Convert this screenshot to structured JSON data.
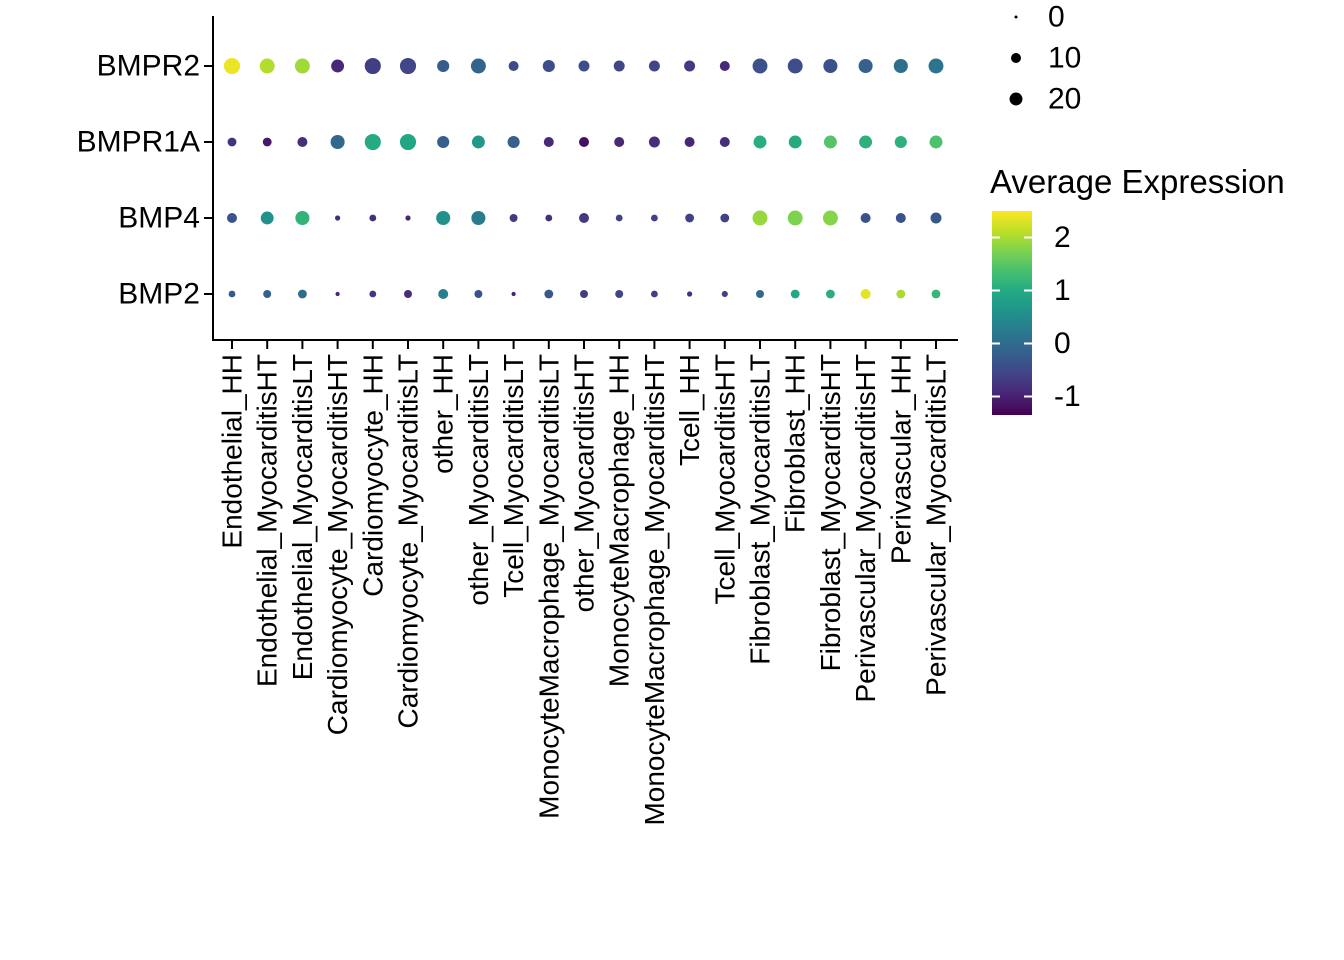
{
  "chart_data": {
    "type": "scatter",
    "subtype": "dot-plot",
    "title": "",
    "xlabel": "",
    "ylabel": "",
    "grid": false,
    "x_categories": [
      "Endothelial_HH",
      "Endothelial_MyocarditisHT",
      "Endothelial_MyocarditisLT",
      "Cardiomyocyte_MyocarditisHT",
      "Cardiomyocyte_HH",
      "Cardiomyocyte_MyocarditisLT",
      "other_HH",
      "other_MyocarditisLT",
      "Tcell_MyocarditisLT",
      "MonocyteMacrophage_MyocarditisLT",
      "other_MyocarditisHT",
      "MonocyteMacrophage_HH",
      "MonocyteMacrophage_MyocarditisHT",
      "Tcell_HH",
      "Tcell_MyocarditisHT",
      "Fibroblast_MyocarditisLT",
      "Fibroblast_HH",
      "Fibroblast_MyocarditisHT",
      "Perivascular_MyocarditisHT",
      "Perivascular_HH",
      "Perivascular_MyocarditisLT"
    ],
    "y_categories": [
      "BMPR2",
      "BMPR1A",
      "BMP4",
      "BMP2"
    ],
    "series": [
      {
        "gene": "BMPR2",
        "avg_expression": [
          2.4,
          2.05,
          1.95,
          -0.9,
          -0.65,
          -0.55,
          -0.25,
          -0.1,
          -0.5,
          -0.45,
          -0.45,
          -0.55,
          -0.55,
          -0.7,
          -0.9,
          -0.4,
          -0.45,
          -0.4,
          -0.15,
          0.05,
          0.15
        ],
        "pct_expressed": [
          35,
          29,
          29,
          20,
          35,
          35,
          17,
          29,
          10,
          17,
          13,
          13,
          13,
          13,
          10,
          29,
          29,
          25,
          25,
          25,
          29
        ]
      },
      {
        "gene": "BMPR1A",
        "avg_expression": [
          -0.8,
          -1.1,
          -0.85,
          -0.05,
          1.0,
          0.95,
          -0.2,
          0.7,
          -0.15,
          -0.9,
          -1.2,
          -0.9,
          -0.85,
          -0.95,
          -0.85,
          1.05,
          1.0,
          1.45,
          1.1,
          1.1,
          1.4
        ],
        "pct_expressed": [
          7,
          7,
          10,
          25,
          35,
          35,
          17,
          20,
          17,
          10,
          10,
          10,
          13,
          10,
          10,
          20,
          20,
          20,
          20,
          17,
          20
        ]
      },
      {
        "gene": "BMP4",
        "avg_expression": [
          -0.35,
          0.6,
          1.15,
          -0.85,
          -0.85,
          -0.9,
          0.6,
          0.25,
          -0.7,
          -0.85,
          -0.7,
          -0.6,
          -0.6,
          -0.6,
          -0.6,
          1.9,
          1.75,
          1.8,
          -0.4,
          -0.4,
          -0.3
        ],
        "pct_expressed": [
          10,
          20,
          25,
          1,
          3,
          1,
          25,
          25,
          5,
          3,
          10,
          3,
          3,
          7,
          7,
          29,
          29,
          29,
          10,
          10,
          13
        ]
      },
      {
        "gene": "BMP2",
        "avg_expression": [
          -0.3,
          -0.2,
          0.0,
          -0.95,
          -0.75,
          -0.85,
          0.3,
          -0.4,
          -1.0,
          -0.3,
          -0.65,
          -0.55,
          -0.65,
          -0.85,
          -0.6,
          -0.05,
          0.95,
          1.05,
          2.35,
          2.0,
          1.2
        ],
        "pct_expressed": [
          3,
          5,
          7,
          0.3,
          3,
          5,
          10,
          5,
          0.3,
          7,
          5,
          5,
          3,
          1,
          2,
          5,
          7,
          7,
          10,
          7,
          7
        ]
      }
    ],
    "size_legend": {
      "values": [
        0,
        10,
        20
      ]
    },
    "color_legend": {
      "title": "Average Expression",
      "ticks": [
        2,
        1,
        0,
        -1
      ],
      "domain": [
        -1.35,
        2.5
      ],
      "colormap": "viridis",
      "viridis_stops": [
        "#440154",
        "#482475",
        "#414487",
        "#355F8D",
        "#2A788E",
        "#21918C",
        "#22A884",
        "#44BF70",
        "#7AD151",
        "#BDDF26",
        "#FDE725"
      ]
    },
    "axis_color": "#000000",
    "background_color": "#FFFFFF"
  }
}
